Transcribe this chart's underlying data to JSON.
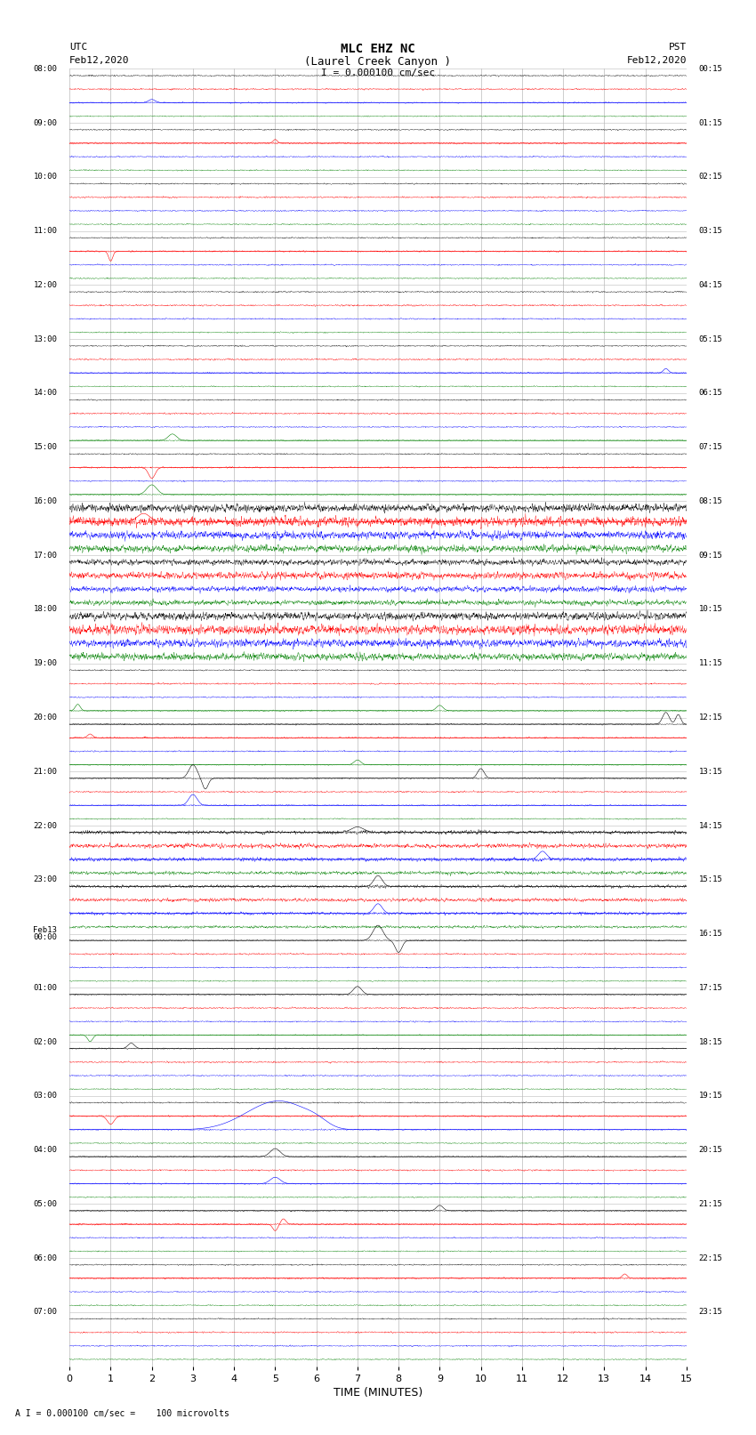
{
  "title_line1": "MLC EHZ NC",
  "title_line2": "(Laurel Creek Canyon )",
  "scale_label": "I = 0.000100 cm/sec",
  "footer_label": "A I = 0.000100 cm/sec =    100 microvolts",
  "utc_header": "UTC",
  "utc_date": "Feb12,2020",
  "pst_header": "PST",
  "pst_date": "Feb12,2020",
  "xlabel": "TIME (MINUTES)",
  "utc_times": [
    "08:00",
    "09:00",
    "10:00",
    "11:00",
    "12:00",
    "13:00",
    "14:00",
    "15:00",
    "16:00",
    "17:00",
    "18:00",
    "19:00",
    "20:00",
    "21:00",
    "22:00",
    "23:00",
    "Feb13\n00:00",
    "01:00",
    "02:00",
    "03:00",
    "04:00",
    "05:00",
    "06:00",
    "07:00"
  ],
  "pst_times": [
    "00:15",
    "01:15",
    "02:15",
    "03:15",
    "04:15",
    "05:15",
    "06:15",
    "07:15",
    "08:15",
    "09:15",
    "10:15",
    "11:15",
    "12:15",
    "13:15",
    "14:15",
    "15:15",
    "16:15",
    "17:15",
    "18:15",
    "19:15",
    "20:15",
    "21:15",
    "22:15",
    "23:15"
  ],
  "n_rows": 24,
  "n_traces_per_row": 4,
  "colors": [
    "black",
    "red",
    "blue",
    "green"
  ],
  "minutes": 15,
  "bg_color": "white",
  "seed": 9999,
  "base_noise": 0.009,
  "row_noise_overrides": {
    "8": 0.055,
    "9": 0.04,
    "10": 0.055,
    "14": 0.025,
    "15": 0.02
  }
}
